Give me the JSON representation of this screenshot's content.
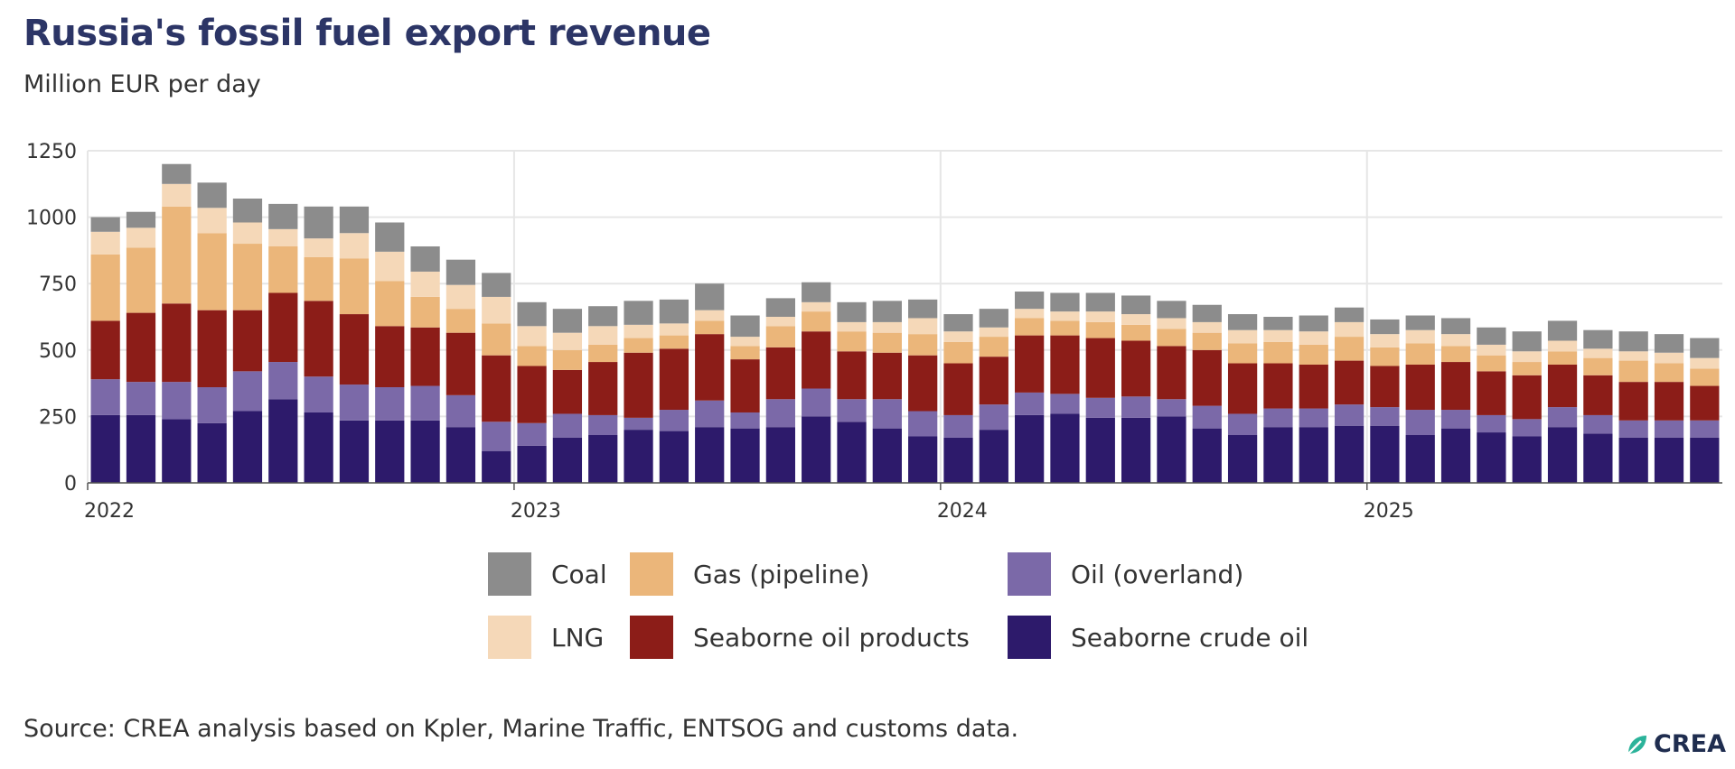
{
  "title": "Russia's fossil fuel export revenue",
  "subtitle": "Million EUR per day",
  "source": "Source: CREA analysis based on Kpler, Marine Traffic, ENTSOG and customs data.",
  "logo": {
    "text": "CREA",
    "icon": "crea-leaf-icon"
  },
  "colors": {
    "Seaborne crude oil": "#2d1a6b",
    "Oil (overland)": "#7b69a8",
    "Seaborne oil products": "#8c1d18",
    "Gas (pipeline)": "#ebb67a",
    "LNG": "#f5d8b8",
    "Coal": "#8c8c8c"
  },
  "legend": [
    {
      "label": "Coal",
      "key": "Coal"
    },
    {
      "label": "Gas (pipeline)",
      "key": "Gas (pipeline)"
    },
    {
      "label": "Oil (overland)",
      "key": "Oil (overland)"
    },
    {
      "label": "LNG",
      "key": "LNG"
    },
    {
      "label": "Seaborne oil products",
      "key": "Seaborne oil products"
    },
    {
      "label": "Seaborne crude oil",
      "key": "Seaborne crude oil"
    }
  ],
  "chart_data": {
    "type": "bar",
    "stacked": true,
    "title": "Russia's fossil fuel export revenue",
    "subtitle": "Million EUR per day",
    "ylim": [
      0,
      1250
    ],
    "yticks": [
      0,
      250,
      500,
      750,
      1000,
      1250
    ],
    "xticks": [
      "2022",
      "2023",
      "2024",
      "2025"
    ],
    "grid": true,
    "legend_position": "bottom",
    "categories": [
      "2022-01",
      "2022-02",
      "2022-03",
      "2022-04",
      "2022-05",
      "2022-06",
      "2022-07",
      "2022-08",
      "2022-09",
      "2022-10",
      "2022-11",
      "2022-12",
      "2023-01",
      "2023-02",
      "2023-03",
      "2023-04",
      "2023-05",
      "2023-06",
      "2023-07",
      "2023-08",
      "2023-09",
      "2023-10",
      "2023-11",
      "2023-12",
      "2024-01",
      "2024-02",
      "2024-03",
      "2024-04",
      "2024-05",
      "2024-06",
      "2024-07",
      "2024-08",
      "2024-09",
      "2024-10",
      "2024-11",
      "2024-12",
      "2025-01",
      "2025-02",
      "2025-03",
      "2025-04",
      "2025-05",
      "2025-06",
      "2025-07",
      "2025-08",
      "2025-09",
      "2025-10"
    ],
    "series": [
      {
        "name": "Seaborne crude oil",
        "values": [
          255,
          255,
          240,
          225,
          270,
          315,
          265,
          235,
          235,
          235,
          210,
          120,
          140,
          170,
          180,
          200,
          195,
          210,
          205,
          210,
          250,
          230,
          205,
          175,
          170,
          200,
          255,
          260,
          245,
          245,
          250,
          205,
          180,
          210,
          210,
          215,
          215,
          180,
          205,
          190,
          175,
          210,
          185,
          170,
          170,
          170
        ]
      },
      {
        "name": "Oil (overland)",
        "values": [
          135,
          125,
          140,
          135,
          150,
          140,
          135,
          135,
          125,
          130,
          120,
          110,
          85,
          90,
          75,
          45,
          80,
          100,
          60,
          105,
          105,
          85,
          110,
          95,
          85,
          95,
          85,
          75,
          75,
          80,
          65,
          85,
          80,
          70,
          70,
          80,
          70,
          95,
          70,
          65,
          65,
          75,
          70,
          65,
          65,
          65
        ]
      },
      {
        "name": "Seaborne oil products",
        "values": [
          220,
          260,
          295,
          290,
          230,
          260,
          285,
          265,
          230,
          220,
          235,
          250,
          215,
          165,
          200,
          245,
          230,
          250,
          200,
          195,
          215,
          180,
          175,
          210,
          195,
          180,
          215,
          220,
          225,
          210,
          200,
          210,
          190,
          170,
          165,
          165,
          155,
          170,
          180,
          165,
          165,
          160,
          150,
          145,
          145,
          130
        ]
      },
      {
        "name": "Gas (pipeline)",
        "values": [
          250,
          245,
          365,
          290,
          250,
          175,
          165,
          210,
          170,
          115,
          90,
          120,
          75,
          75,
          65,
          55,
          50,
          50,
          50,
          80,
          75,
          75,
          75,
          80,
          80,
          75,
          65,
          55,
          60,
          60,
          65,
          65,
          75,
          80,
          75,
          90,
          70,
          80,
          60,
          60,
          50,
          50,
          65,
          80,
          70,
          65
        ]
      },
      {
        "name": "LNG",
        "values": [
          85,
          75,
          85,
          95,
          80,
          65,
          70,
          95,
          110,
          95,
          90,
          100,
          75,
          65,
          70,
          50,
          45,
          40,
          35,
          35,
          35,
          35,
          40,
          60,
          40,
          35,
          35,
          35,
          40,
          40,
          40,
          40,
          50,
          45,
          50,
          55,
          50,
          50,
          45,
          40,
          40,
          40,
          35,
          35,
          40,
          40
        ]
      },
      {
        "name": "Coal",
        "values": [
          55,
          60,
          75,
          95,
          90,
          95,
          120,
          100,
          110,
          95,
          95,
          90,
          90,
          90,
          75,
          90,
          90,
          100,
          80,
          70,
          75,
          75,
          80,
          70,
          65,
          70,
          65,
          70,
          70,
          70,
          65,
          65,
          60,
          50,
          60,
          55,
          55,
          55,
          60,
          65,
          75,
          75,
          70,
          75,
          70,
          75
        ]
      }
    ]
  }
}
